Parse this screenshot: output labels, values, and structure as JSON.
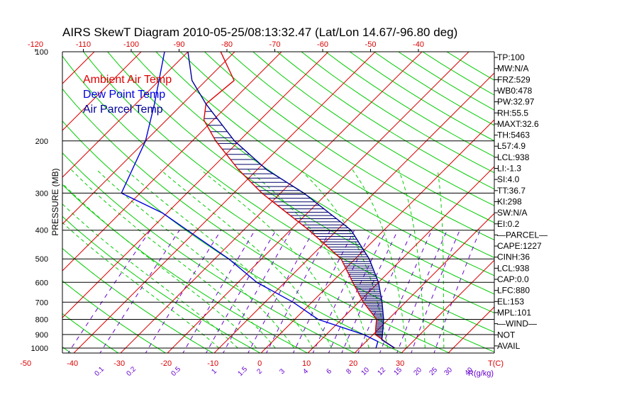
{
  "title": "AIRS SkewT Diagram 2010-05-25/08:13:32.47 (Lat/Lon 14.67/-96.80 deg)",
  "chart_data": {
    "type": "line",
    "title": "AIRS SkewT Diagram 2010-05-25/08:13:32.47 (Lat/Lon 14.67/-96.80 deg)",
    "ylabel": "PRESSURE (MB)",
    "xlabel": "T(C)",
    "mixing_ratio_unit": "R(g/kg)",
    "y_scale": "log",
    "y_range_mb": [
      100,
      1050
    ],
    "pressure_ticks": [
      100,
      200,
      300,
      400,
      500,
      600,
      700,
      800,
      900,
      1000
    ],
    "top_temp_ticks": [
      -120,
      -110,
      -100,
      -90,
      -80,
      -70,
      -60,
      -50,
      -40
    ],
    "bottom_temp_ticks": [
      -50,
      -40,
      -30,
      -20,
      -10,
      0,
      10,
      20,
      30
    ],
    "mixing_ratio_labels": [
      "0.1",
      "0.2",
      "0.5",
      "1",
      "1.5",
      "2",
      "3",
      "4",
      "6",
      "8",
      "10",
      "12",
      "15",
      "20",
      "25",
      "30",
      "40"
    ],
    "legend": [
      {
        "label": "Ambient Air Temp",
        "color": "#dd0000"
      },
      {
        "label": "Dew Point Temp",
        "color": "#0000dd"
      },
      {
        "label": "Air Parcel Temp",
        "color": "#000099"
      }
    ],
    "series": [
      {
        "name": "Ambient Air Temp",
        "color": "#dd0000",
        "points": [
          [
            1000,
            27.5
          ],
          [
            950,
            24
          ],
          [
            900,
            20.5
          ],
          [
            850,
            19
          ],
          [
            800,
            17.5
          ],
          [
            700,
            11
          ],
          [
            600,
            4.5
          ],
          [
            500,
            -3
          ],
          [
            400,
            -16
          ],
          [
            300,
            -34
          ],
          [
            250,
            -44
          ],
          [
            200,
            -55
          ],
          [
            170,
            -62
          ],
          [
            150,
            -65
          ],
          [
            125,
            -64
          ],
          [
            100,
            -73
          ]
        ]
      },
      {
        "name": "Dew Point Temp",
        "color": "#0000dd",
        "points": [
          [
            1000,
            23.5
          ],
          [
            950,
            22.5
          ],
          [
            900,
            18
          ],
          [
            800,
            5
          ],
          [
            700,
            -4
          ],
          [
            600,
            -16
          ],
          [
            500,
            -27
          ],
          [
            400,
            -42
          ],
          [
            350,
            -51
          ],
          [
            300,
            -64
          ],
          [
            200,
            -70
          ],
          [
            150,
            -76
          ],
          [
            100,
            -85
          ]
        ]
      },
      {
        "name": "Air Parcel Temp",
        "color": "#000099",
        "points": [
          [
            1000,
            27.5
          ],
          [
            938,
            23
          ],
          [
            900,
            22
          ],
          [
            800,
            19
          ],
          [
            700,
            15
          ],
          [
            600,
            10
          ],
          [
            500,
            3
          ],
          [
            400,
            -7
          ],
          [
            300,
            -25
          ],
          [
            250,
            -38
          ],
          [
            200,
            -51
          ],
          [
            150,
            -65
          ],
          [
            125,
            -73
          ],
          [
            100,
            -80
          ]
        ]
      }
    ],
    "indices": [
      {
        "label": "TP:100"
      },
      {
        "label": "MW:N/A"
      },
      {
        "label": "FRZ:529"
      },
      {
        "label": "WB0:478"
      },
      {
        "label": "PW:32.97"
      },
      {
        "label": "RH:55.5"
      },
      {
        "label": "MAXT:32.6"
      },
      {
        "label": "TH:5463"
      },
      {
        "label": "L57:4.9"
      },
      {
        "label": "LCL:938"
      },
      {
        "label": "LI:-1.3"
      },
      {
        "label": "SI:4.0"
      },
      {
        "label": "TT:36.7"
      },
      {
        "label": "KI:298"
      },
      {
        "label": "SW:N/A"
      },
      {
        "label": "EI:0.2"
      },
      {
        "label": "—PARCEL—"
      },
      {
        "label": "CAPE:1227"
      },
      {
        "label": "CINH:36"
      },
      {
        "label": "LCL:938"
      },
      {
        "label": "CAP:0.0"
      },
      {
        "label": "LFC:880"
      },
      {
        "label": "EL:153"
      },
      {
        "label": "MPL:101"
      },
      {
        "label": "—WIND—"
      },
      {
        "label": "NOT"
      },
      {
        "label": "AVAIL"
      }
    ],
    "colors": {
      "isotherm": "#dd0000",
      "dry_adiabat": "#00cc00",
      "moist_adiabat": "#00cc00",
      "mixing_ratio": "#6600cc",
      "isobar": "#000000",
      "hatch": "#000066"
    }
  }
}
